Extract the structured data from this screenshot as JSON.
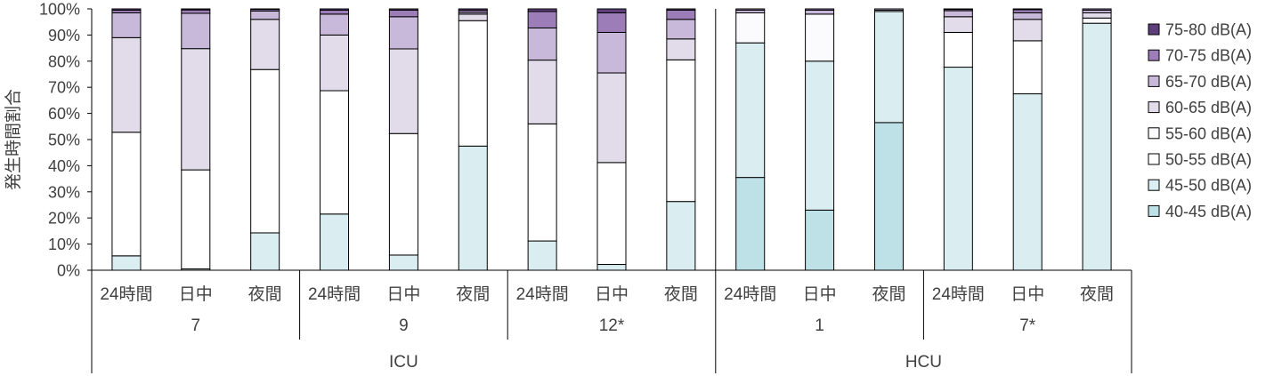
{
  "chart_data": {
    "type": "bar",
    "stacked": true,
    "ylabel": "発生時間割合",
    "ylim": [
      0,
      100
    ],
    "yticks": [
      "0%",
      "10%",
      "20%",
      "30%",
      "40%",
      "50%",
      "60%",
      "70%",
      "80%",
      "90%",
      "100%"
    ],
    "grid": false,
    "legend_position": "right",
    "groups": [
      {
        "name": "ICU",
        "subgroups": [
          {
            "name": "7",
            "categories": [
              "24時間",
              "日中",
              "夜間"
            ]
          },
          {
            "name": "9",
            "categories": [
              "24時間",
              "日中",
              "夜間"
            ]
          },
          {
            "name": "12*",
            "categories": [
              "24時間",
              "日中",
              "夜間"
            ]
          }
        ]
      },
      {
        "name": "HCU",
        "subgroups": [
          {
            "name": "1",
            "categories": [
              "24時間",
              "日中",
              "夜間"
            ]
          },
          {
            "name": "7*",
            "categories": [
              "24時間",
              "日中",
              "夜間"
            ]
          }
        ]
      }
    ],
    "series": [
      {
        "name": "40-45 dB(A)",
        "color": "#bde1e6",
        "values": [
          0,
          0,
          0,
          0,
          0,
          0,
          0,
          0,
          0,
          35.5,
          23,
          56.5,
          0,
          0,
          0
        ]
      },
      {
        "name": "45-50 dB(A)",
        "color": "#daeef2",
        "values": [
          5.5,
          0.5,
          14.3,
          21.5,
          5.8,
          47.5,
          11.2,
          2.2,
          26.3,
          51.5,
          57,
          42.5,
          77.7,
          67.5,
          94.5
        ]
      },
      {
        "name": "50-55 dB(A)",
        "color": "#ffffff",
        "values": [
          47.3,
          37.9,
          62.5,
          47.2,
          46.5,
          48.0,
          44.8,
          39.0,
          54.2,
          0,
          0,
          0,
          13.3,
          20.3,
          0
        ]
      },
      {
        "name": "55-60 dB(A)",
        "color": "#fbfafd",
        "values": [
          0,
          0,
          0,
          0,
          0,
          0,
          0,
          0,
          0,
          11.5,
          18,
          0.5,
          0,
          0,
          2
        ]
      },
      {
        "name": "60-65 dB(A)",
        "color": "#e2dbea",
        "values": [
          36.2,
          46.4,
          19.2,
          21.3,
          32.4,
          2.5,
          24.4,
          34.3,
          8.0,
          0,
          0,
          0,
          6.0,
          8.2,
          2
        ]
      },
      {
        "name": "65-70 dB(A)",
        "color": "#c8b8d9",
        "values": [
          9.5,
          13.5,
          3.2,
          8.0,
          12.3,
          0.7,
          12.3,
          15.5,
          7.5,
          1,
          1.5,
          0.5,
          2.3,
          2.5,
          1
        ]
      },
      {
        "name": "70-75 dB(A)",
        "color": "#9d7db8",
        "values": [
          1.0,
          1.3,
          0.6,
          1.5,
          2.5,
          0.8,
          6.3,
          7.5,
          3.5,
          0.5,
          0.5,
          0,
          0.5,
          1.2,
          0.5
        ]
      },
      {
        "name": "75-80 dB(A)",
        "color": "#5e3f7c",
        "values": [
          0.5,
          0.4,
          0.2,
          0.5,
          0.5,
          0.5,
          1.0,
          1.5,
          0.5,
          0,
          0,
          0,
          0.2,
          0.3,
          0
        ]
      }
    ]
  }
}
